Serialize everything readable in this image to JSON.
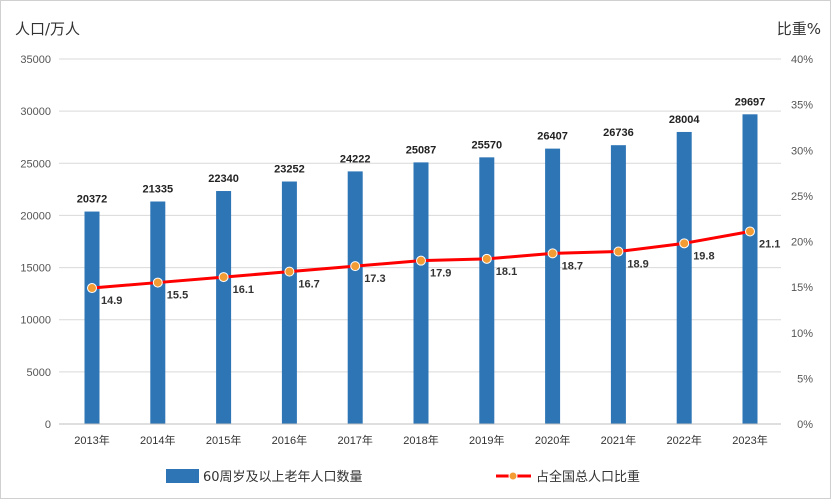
{
  "chart_data": {
    "type": "bar",
    "left_axis_title": "人口/万人",
    "right_axis_title": "比重%",
    "categories": [
      "2013年",
      "2014年",
      "2015年",
      "2016年",
      "2017年",
      "2018年",
      "2019年",
      "2020年",
      "2021年",
      "2022年",
      "2023年"
    ],
    "ylim_left": [
      0,
      35000
    ],
    "yticks_left": [
      "0",
      "5000",
      "10000",
      "15000",
      "20000",
      "25000",
      "30000",
      "35000"
    ],
    "ylim_right": [
      0,
      40
    ],
    "yticks_right": [
      "0%",
      "5%",
      "10%",
      "15%",
      "20%",
      "25%",
      "30%",
      "35%",
      "40%"
    ],
    "series": [
      {
        "name": "60周岁及以上老年人口数量",
        "type": "bar",
        "color": "#2e75b6",
        "values": [
          20372,
          21335,
          22340,
          23252,
          24222,
          25087,
          25570,
          26407,
          26736,
          28004,
          29697
        ],
        "labels": [
          "20372",
          "21335",
          "22340",
          "23252",
          "24222",
          "25087",
          "25570",
          "26407",
          "26736",
          "28004",
          "29697"
        ]
      },
      {
        "name": "占全国总人口比重",
        "type": "line",
        "color": "#ff0000",
        "marker_color": "#f39c34",
        "values": [
          14.9,
          15.5,
          16.1,
          16.7,
          17.3,
          17.9,
          18.1,
          18.7,
          18.9,
          19.8,
          21.1
        ],
        "labels": [
          "14.9",
          "15.5",
          "16.1",
          "16.7",
          "17.3",
          "17.9",
          "18.1",
          "18.7",
          "18.9",
          "19.8",
          "21.1"
        ]
      }
    ],
    "grid": true
  }
}
